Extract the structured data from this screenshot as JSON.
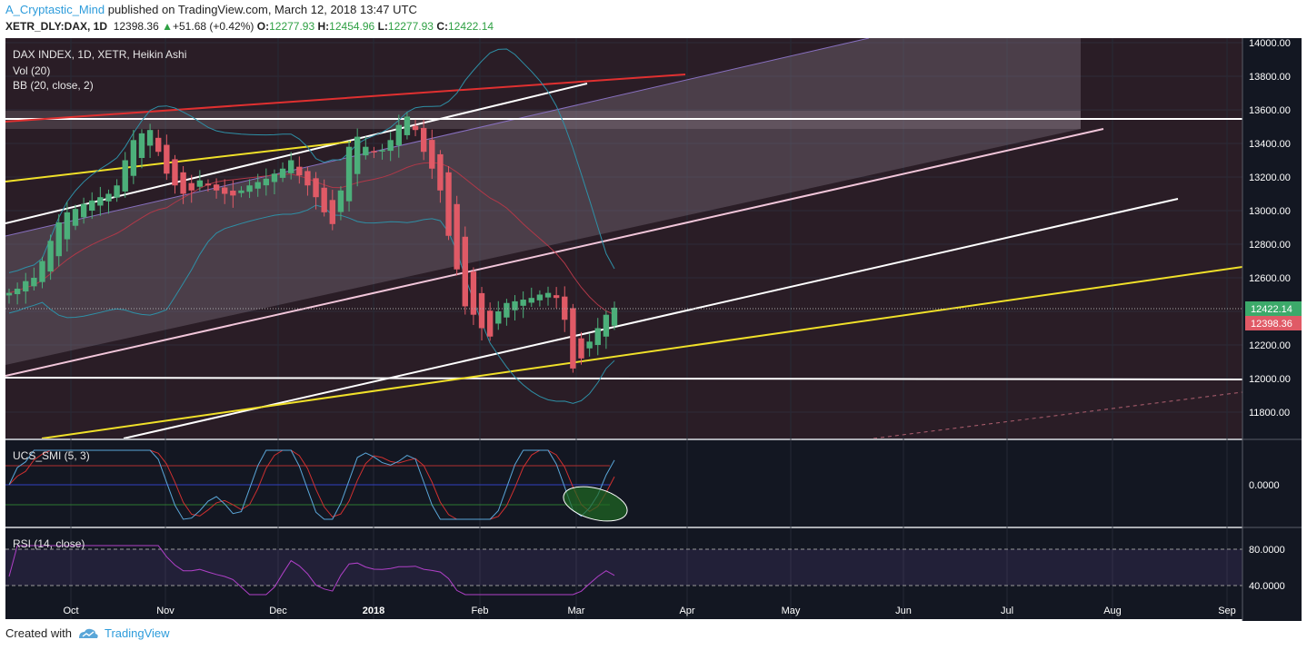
{
  "header": {
    "author": "A_Cryptastic_Mind",
    "published": " published on TradingView.com, March 12, 2018 13:47 UTC",
    "symbol": "XETR_DLY:DAX, 1D",
    "price": "12398.36",
    "change": "+51.68 (+0.42%)",
    "o_label": "O:",
    "o": "12277.93",
    "h_label": "H:",
    "h": "12454.96",
    "l_label": "L:",
    "l": "12277.93",
    "c_label": "C:",
    "c": "12422.14"
  },
  "legend": {
    "title": "DAX INDEX, 1D, XETR, Heikin Ashi",
    "vol": "Vol (20)",
    "bb": "BB (20, close, 2)",
    "smi": "UCS_SMI (5, 3)",
    "rsi": "RSI (14, close)"
  },
  "price_badges": {
    "last": "12422.14",
    "prev": "12398.36"
  },
  "footer": {
    "created_with": "Created with",
    "brand": "TradingView"
  },
  "colors": {
    "background": "#131722",
    "up": "#4caf7a",
    "down": "#e05a66",
    "yellow": "#f0e029",
    "red": "#e03030",
    "white": "#ffffff",
    "accent": "#2d9cdb"
  },
  "chart_data": [
    {
      "type": "candlestick",
      "style": "Heikin Ashi",
      "ylim": [
        11650,
        14000
      ],
      "y_ticks": [
        "14000.00",
        "13800.00",
        "13600.00",
        "13400.00",
        "13200.00",
        "13000.00",
        "12800.00",
        "12600.00",
        "12400.00",
        "12200.00",
        "12000.00",
        "11800.00"
      ],
      "x_ticks": [
        "Oct",
        "Nov",
        "Dec",
        "2018",
        "Feb",
        "Mar",
        "Apr",
        "May",
        "Jun",
        "Jul",
        "Aug",
        "Sep"
      ],
      "series": [
        {
          "name": "close",
          "values": [
            12510,
            12535,
            12580,
            12600,
            12700,
            12820,
            12930,
            12990,
            13010,
            13040,
            13060,
            13080,
            13100,
            13150,
            13300,
            13420,
            13460,
            13480,
            13350,
            13220,
            13150,
            13100,
            13120,
            13180,
            13150,
            13120,
            13100,
            13090,
            13120,
            13150,
            13170,
            13190,
            13220,
            13250,
            13300,
            13210,
            13150,
            13080,
            12990,
            12920,
            13120,
            13380,
            13440,
            13380,
            13350,
            13360,
            13420,
            13510,
            13560,
            13480,
            13350,
            13250,
            13120,
            12850,
            12650,
            12430,
            12380,
            12300,
            12250,
            12400,
            12450,
            12460,
            12470,
            12480,
            12500,
            12510,
            12480,
            12350,
            12060,
            12120,
            12220,
            12300,
            12380,
            12422
          ]
        }
      ]
    },
    {
      "type": "line",
      "name": "UCS_SMI (5, 3)",
      "y_ticks": [
        "0.0000"
      ]
    },
    {
      "type": "line",
      "name": "RSI (14, close)",
      "ylim": [
        28,
        88
      ],
      "y_ticks": [
        "80.0000",
        "40.0000"
      ]
    }
  ]
}
